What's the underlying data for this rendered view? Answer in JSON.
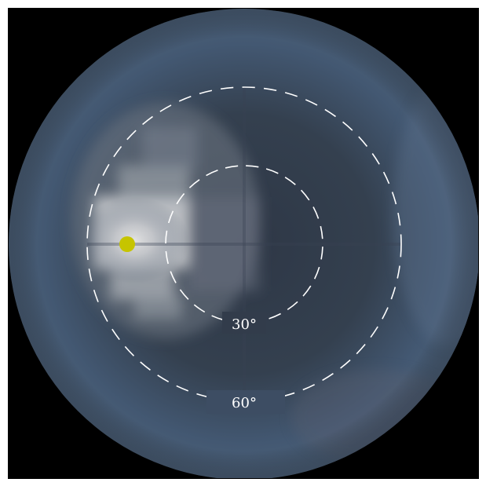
{
  "view": {
    "background_color": "#000000",
    "sky_color": "#3e5068",
    "bright_region_color": "#d8d8d8",
    "marker_color": "#c8c800",
    "ring_color": "#ffffff"
  },
  "rings": [
    {
      "label": "30°",
      "zenith_angle_deg": 30
    },
    {
      "label": "60°",
      "zenith_angle_deg": 60
    }
  ],
  "marker": {
    "name": "sun-position-marker",
    "zenith_angle_deg": 45,
    "azimuth": "left"
  }
}
